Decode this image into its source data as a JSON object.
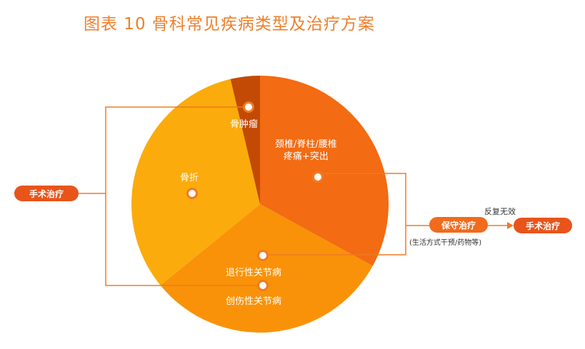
{
  "title": "图表 10 骨科常见疾病类型及治疗方案",
  "segments": {
    "tumor": "骨肿瘤",
    "fracture": "骨折",
    "spine_line1": "颈椎/脊柱/腰椎",
    "spine_line2": "疼痛+突出",
    "degenerative": "退行性关节病",
    "trauma": "创伤性关节病"
  },
  "treatments": {
    "surgery_left": "手术治疗",
    "conservative": "保守治疗",
    "conservative_note": "(生活方式干预/药物等)",
    "repeat_note": "反复无效",
    "surgery_right": "手术治疗"
  },
  "colors": {
    "title": "#ee7f2b",
    "tumor": "#c34a04",
    "spine": "#f36b12",
    "joint": "#f99208",
    "fracture": "#fbab0b",
    "connector": "#f07a22",
    "pill": "#e8541a"
  }
}
